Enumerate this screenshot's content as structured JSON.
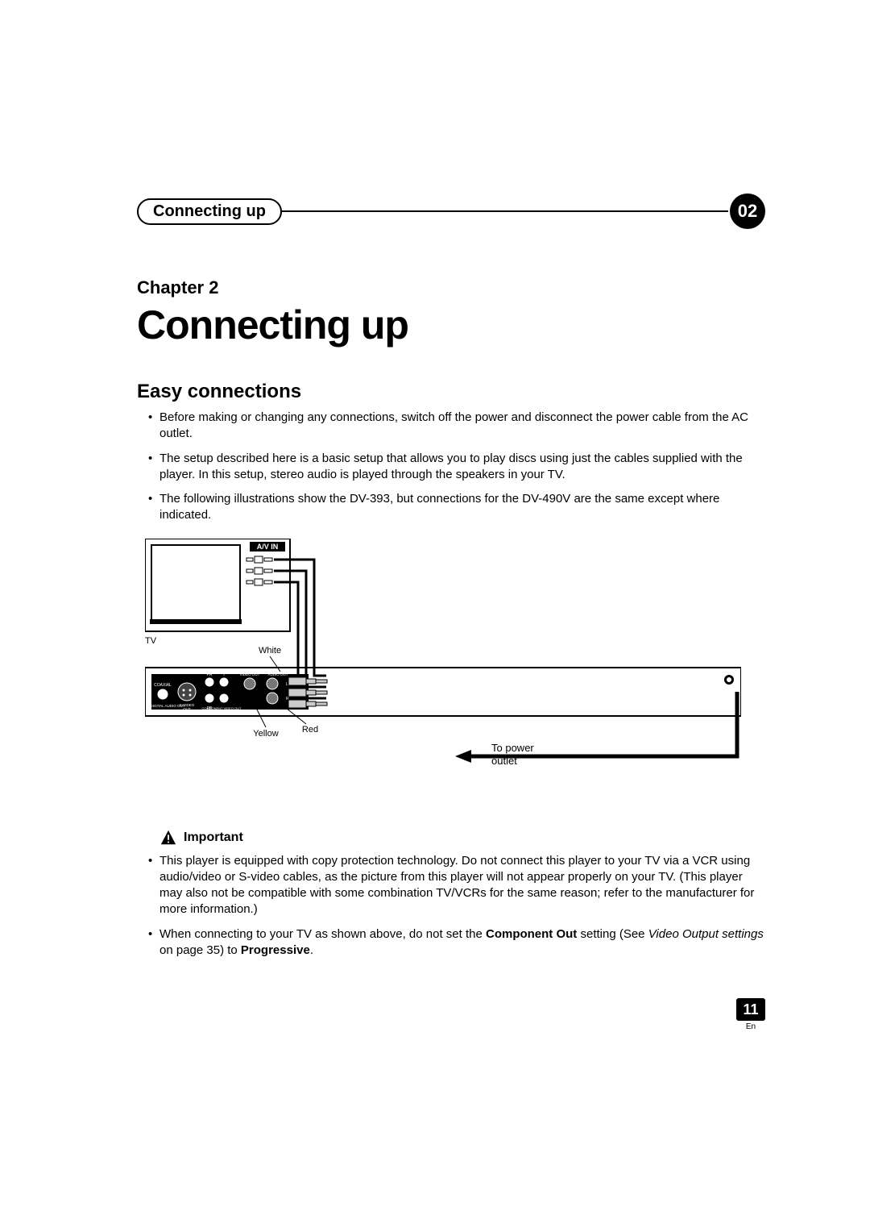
{
  "header": {
    "running_title": "Connecting up",
    "chapter_num_badge": "02"
  },
  "chapter": {
    "label": "Chapter 2",
    "title": "Connecting up"
  },
  "section": {
    "title": "Easy connections",
    "bullets": [
      "Before making or changing any connections, switch off the power and disconnect the power cable from the AC outlet.",
      "The setup described here is a basic setup that allows you to play discs using just the cables supplied with the player. In this setup, stereo audio is played through the speakers in your TV.",
      "The following illustrations show the DV-393, but connections for the DV-490V are the same except where indicated."
    ]
  },
  "diagram": {
    "tv_label": "TV",
    "avin_label": "A/V IN",
    "white_label": "White",
    "yellow_label": "Yellow",
    "red_label": "Red",
    "to_power_line1": "To power",
    "to_power_line2": "outlet",
    "rear_labels": {
      "coaxial": "COAXIAL",
      "digital_audio_out": "DIGITAL AUDIO OUT",
      "svideo": "S-VIDEO",
      "out": "OUT",
      "component": "COMPONENT VIDEO OUT",
      "pr": "PR",
      "pb": "PB",
      "y": "Y",
      "video_out": "VIDEO OUT",
      "audio_out": "AUDIO OUT",
      "l": "L",
      "r": "R"
    },
    "colors": {
      "black": "#000000",
      "white": "#ffffff",
      "gray": "#555555"
    }
  },
  "important": {
    "label": "Important",
    "bullets_html": [
      "This player is equipped with copy protection technology. Do not connect this player to your TV via a VCR using audio/video or S-video cables, as the picture from this player will not appear properly on your TV. (This player may also not be compatible with some combination TV/VCRs for the same reason; refer to the manufacturer for more information.)",
      "When connecting to your TV as shown above, do not set the <span class=\"bold\">Component Out</span> setting (See <span class=\"italic\">Video Output settings</span> on page 35) to <span class=\"bold\">Progressive</span>."
    ]
  },
  "footer": {
    "page": "11",
    "lang": "En"
  }
}
